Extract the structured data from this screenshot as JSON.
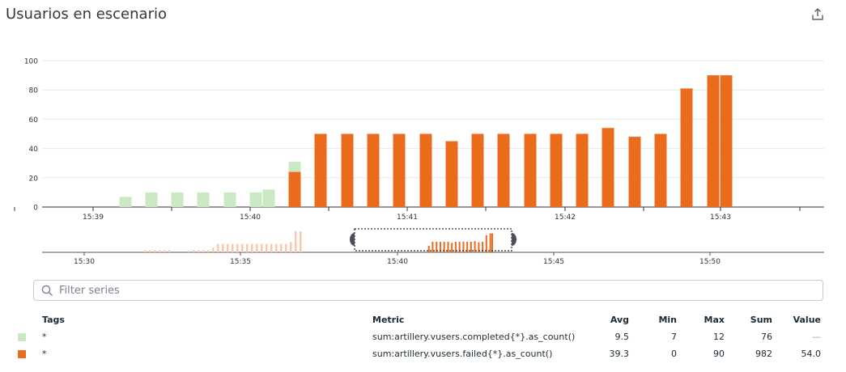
{
  "title": "Usuarios en escenario",
  "share_icon": "share-upload-icon",
  "colors": {
    "completed": "#cbe8c5",
    "failed": "#eb6b1c",
    "completed_faded": "#f9c9ae",
    "grid": "#e6e9ee",
    "axis": "#333333"
  },
  "chart_data": {
    "type": "bar",
    "stacked": true,
    "ylim": [
      0,
      100
    ],
    "yticks": [
      0,
      20,
      40,
      60,
      80,
      100
    ],
    "x_tick_labels": [
      "15:39",
      "15:40",
      "15:41",
      "15:42",
      "15:43"
    ],
    "grid": true,
    "series": [
      {
        "name": "sum:artillery.vusers.completed{*}.as_count()",
        "values": [
          7,
          10,
          10,
          10,
          10,
          10,
          12,
          7,
          0,
          0,
          0,
          0,
          0,
          0,
          0,
          0,
          0,
          0,
          0,
          0,
          0,
          0,
          0,
          0,
          0
        ]
      },
      {
        "name": "sum:artillery.vusers.failed{*}.as_count()",
        "values": [
          0,
          0,
          0,
          0,
          0,
          0,
          0,
          24,
          50,
          50,
          50,
          50,
          50,
          45,
          50,
          50,
          50,
          50,
          50,
          54,
          48,
          50,
          81,
          90,
          90
        ]
      }
    ]
  },
  "navigator": {
    "tick_labels": [
      "15:30",
      "15:35",
      "15:40",
      "15:45",
      "15:50"
    ]
  },
  "search": {
    "placeholder": "Filter series",
    "value": ""
  },
  "legend": {
    "headers": {
      "tags": "Tags",
      "metric": "Metric",
      "avg": "Avg",
      "min": "Min",
      "max": "Max",
      "sum": "Sum",
      "value": "Value"
    },
    "rows": [
      {
        "color": "#cbe8c5",
        "tags": "*",
        "metric": "sum:artillery.vusers.completed{*}.as_count()",
        "avg": "9.5",
        "min": "7",
        "max": "12",
        "sum": "76",
        "value": "—"
      },
      {
        "color": "#eb6b1c",
        "tags": "*",
        "metric": "sum:artillery.vusers.failed{*}.as_count()",
        "avg": "39.3",
        "min": "0",
        "max": "90",
        "sum": "982",
        "value": "54.0"
      }
    ]
  }
}
